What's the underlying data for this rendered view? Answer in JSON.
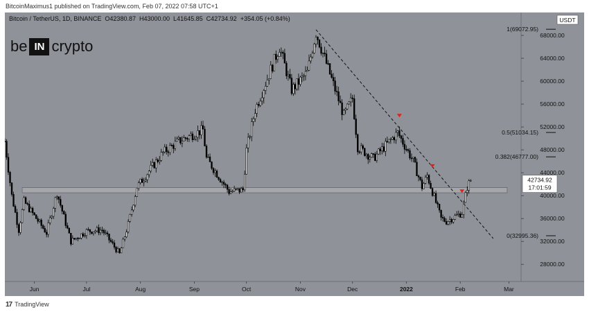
{
  "header": {
    "published": "BitcoinMaximus1 published on TradingView.com, Feb 07, 2022 07:58 UTC+1"
  },
  "legend": {
    "title": "Bitcoin / TetherUS, 1D, BINANCE",
    "o_label": "O",
    "o": "42380.87",
    "h_label": "H",
    "h": "43000.00",
    "l_label": "L",
    "l": "41645.85",
    "c_label": "C",
    "c": "42734.92",
    "change": "+354.05 (+0.84%)"
  },
  "logo": {
    "left": "be",
    "box": "IN",
    "right": "crypto"
  },
  "footer": {
    "brand": "TradingView",
    "logo_icon": "tradingview-logo-icon"
  },
  "colors": {
    "background": "#8f9399",
    "candle": "#000000",
    "support_zone": "#a8a9ad",
    "marker": "#e0201b"
  },
  "chart_data": {
    "type": "candlestick",
    "symbol": "BTCUSDT",
    "currency": "USDT",
    "last_price": "42734.92",
    "countdown": "17:01:59",
    "ylim": [
      25000,
      72000
    ],
    "yticks": [
      "28000.00",
      "32000.00",
      "36000.00",
      "40000.00",
      "44000.00",
      "48000.00",
      "52000.00",
      "56000.00",
      "60000.00",
      "64000.00",
      "68000.00"
    ],
    "xlim": [
      "2021-05-15",
      "2022-03-08"
    ],
    "xticks": [
      {
        "label": "Jun",
        "date": "2021-06-01"
      },
      {
        "label": "Jul",
        "date": "2021-07-01"
      },
      {
        "label": "Aug",
        "date": "2021-08-01"
      },
      {
        "label": "Sep",
        "date": "2021-09-01"
      },
      {
        "label": "Oct",
        "date": "2021-10-01"
      },
      {
        "label": "Nov",
        "date": "2021-11-01"
      },
      {
        "label": "Dec",
        "date": "2021-12-01"
      },
      {
        "label": "2022",
        "date": "2022-01-01"
      },
      {
        "label": "Feb",
        "date": "2022-02-01"
      },
      {
        "label": "Mar",
        "date": "2022-03-01"
      }
    ],
    "price_path": [
      [
        "2021-05-15",
        49500
      ],
      [
        "2021-05-19",
        40000
      ],
      [
        "2021-05-23",
        34000
      ],
      [
        "2021-05-26",
        39000
      ],
      [
        "2021-06-08",
        33500
      ],
      [
        "2021-06-14",
        40500
      ],
      [
        "2021-06-22",
        32000
      ],
      [
        "2021-07-01",
        33800
      ],
      [
        "2021-07-10",
        34000
      ],
      [
        "2021-07-20",
        29800
      ],
      [
        "2021-07-25",
        35000
      ],
      [
        "2021-07-30",
        41500
      ],
      [
        "2021-08-14",
        47500
      ],
      [
        "2021-08-23",
        49500
      ],
      [
        "2021-09-06",
        51500
      ],
      [
        "2021-09-08",
        46500
      ],
      [
        "2021-09-21",
        40700
      ],
      [
        "2021-09-29",
        41000
      ],
      [
        "2021-10-01",
        48000
      ],
      [
        "2021-10-06",
        55000
      ],
      [
        "2021-10-15",
        62000
      ],
      [
        "2021-10-20",
        66000
      ],
      [
        "2021-10-27",
        58500
      ],
      [
        "2021-11-05",
        61500
      ],
      [
        "2021-11-10",
        68500
      ],
      [
        "2021-11-15",
        64000
      ],
      [
        "2021-11-26",
        54000
      ],
      [
        "2021-12-01",
        57000
      ],
      [
        "2021-12-04",
        48500
      ],
      [
        "2021-12-13",
        46500
      ],
      [
        "2021-12-27",
        51000
      ],
      [
        "2022-01-05",
        46000
      ],
      [
        "2022-01-10",
        41500
      ],
      [
        "2022-01-13",
        43500
      ],
      [
        "2022-01-21",
        36000
      ],
      [
        "2022-01-24",
        35500
      ],
      [
        "2022-02-02",
        37000
      ],
      [
        "2022-02-05",
        41500
      ],
      [
        "2022-02-07",
        42734
      ]
    ],
    "support_zone": [
      40500,
      41400
    ],
    "descending_trendline": [
      [
        "2021-11-10",
        69000
      ],
      [
        "2022-02-20",
        32500
      ]
    ],
    "fib_levels": [
      {
        "label": "1(69072.95)",
        "value": 69072.95
      },
      {
        "label": "0.5(51034.15)",
        "value": 51034.15
      },
      {
        "label": "0.382(46777.00)",
        "value": 46777.0
      },
      {
        "label": "0(32995.36)",
        "value": 32995.36
      }
    ],
    "markers": [
      {
        "date": "2021-12-28",
        "value": 53800
      },
      {
        "date": "2022-01-16",
        "value": 45000
      },
      {
        "date": "2022-02-02",
        "value": 40600
      }
    ]
  }
}
